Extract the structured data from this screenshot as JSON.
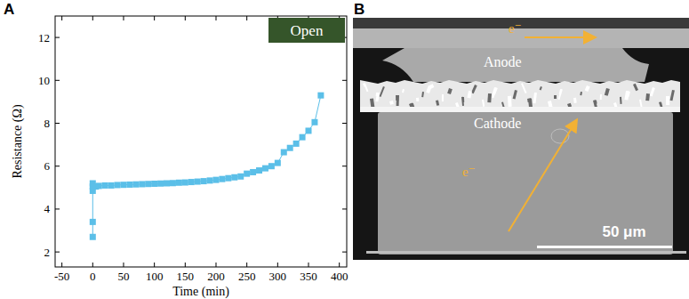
{
  "chart_data": {
    "type": "line",
    "panel": "A",
    "x_label": "Time (min)",
    "y_label": "Resistance (Ω)",
    "x": [
      0,
      0,
      0,
      0,
      0,
      5,
      10,
      20,
      30,
      40,
      50,
      60,
      70,
      80,
      90,
      100,
      110,
      120,
      130,
      140,
      150,
      160,
      170,
      180,
      190,
      200,
      210,
      220,
      230,
      240,
      250,
      260,
      270,
      280,
      290,
      300,
      310,
      320,
      330,
      340,
      350,
      360,
      370
    ],
    "series": [
      {
        "color": "#5bbfe8",
        "marker": "square",
        "line_style": "solid",
        "values": [
          2.7,
          3.4,
          4.85,
          5.05,
          5.2,
          5.05,
          5.08,
          5.1,
          5.1,
          5.12,
          5.13,
          5.14,
          5.15,
          5.16,
          5.17,
          5.18,
          5.19,
          5.2,
          5.21,
          5.23,
          5.24,
          5.26,
          5.28,
          5.3,
          5.33,
          5.36,
          5.4,
          5.44,
          5.48,
          5.52,
          5.65,
          5.72,
          5.8,
          5.9,
          6.0,
          6.15,
          6.65,
          6.85,
          7.05,
          7.35,
          7.65,
          8.05,
          9.3
        ]
      }
    ],
    "xlim": [
      -61,
      412
    ],
    "ylim": [
      1.3,
      13
    ],
    "xticks": [
      -50,
      0,
      50,
      100,
      150,
      200,
      250,
      300,
      350,
      400
    ],
    "yticks": [
      2,
      4,
      6,
      8,
      10,
      12
    ],
    "grid": false,
    "annotations": [
      "Open"
    ]
  },
  "image": {
    "panel": "B",
    "labels": {
      "anode": "Anode",
      "cathode": "Cathode"
    },
    "electron_labels": [
      "e⁻",
      "e⁻"
    ],
    "scale_bar": "50 μm"
  }
}
